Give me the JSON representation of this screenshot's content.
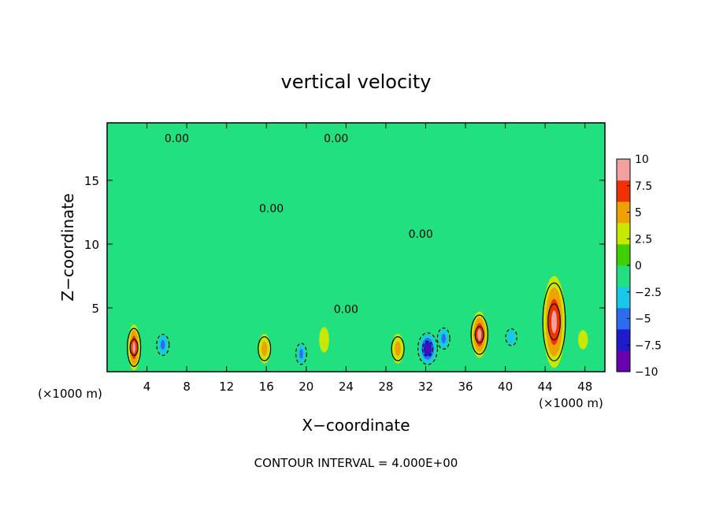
{
  "chart_data": {
    "type": "heatmap",
    "title": "vertical velocity",
    "xlabel": "X−coordinate",
    "ylabel": "Z−coordinate",
    "x_unit_left": "(×1000 m)",
    "x_unit_right": "(×1000 m)",
    "xlim": [
      0,
      50
    ],
    "ylim": [
      0,
      19.5
    ],
    "x_ticks": [
      4,
      8,
      12,
      16,
      20,
      24,
      28,
      32,
      36,
      40,
      44,
      48
    ],
    "x_tick_labels": [
      "4",
      "8",
      "12",
      "16",
      "20",
      "24",
      "28",
      "32",
      "36",
      "40",
      "44",
      "48"
    ],
    "y_ticks": [
      5,
      10,
      15
    ],
    "y_tick_labels": [
      "5",
      "10",
      "15"
    ],
    "contour_interval_text": "CONTOUR INTERVAL = 4.000E+00",
    "contour_labels": [
      {
        "text": "0.00",
        "x": 7.0,
        "z": 18.0
      },
      {
        "text": "0.00",
        "x": 23.0,
        "z": 18.0
      },
      {
        "text": "0.00",
        "x": 16.5,
        "z": 12.5
      },
      {
        "text": "0.00",
        "x": 31.5,
        "z": 10.5
      },
      {
        "text": "0.00",
        "x": 24.0,
        "z": 4.6
      }
    ],
    "colorbar": {
      "range": [
        -10,
        10
      ],
      "tick_values": [
        10,
        7.5,
        5,
        2.5,
        0,
        -2.5,
        -5,
        -7.5,
        -10
      ],
      "tick_labels": [
        "10",
        "7.5",
        "5",
        "2.5",
        "0",
        "−2.5",
        "−5",
        "−7.5",
        "−10"
      ],
      "colors": [
        "#6a00b0",
        "#1c1ccc",
        "#2c6cf0",
        "#18c8e8",
        "#20e080",
        "#40d000",
        "#c8e800",
        "#f0a000",
        "#f03000",
        "#f4a0a0"
      ]
    },
    "features": [
      {
        "x": 2.7,
        "z": 1.9,
        "w": 0.75,
        "h": 4.5,
        "value": 8.0
      },
      {
        "x": 5.6,
        "z": 2.1,
        "w": 0.9,
        "h": 3.0,
        "value": -5.5
      },
      {
        "x": 15.8,
        "z": 1.8,
        "w": 0.9,
        "h": 3.5,
        "value": 5.5
      },
      {
        "x": 19.5,
        "z": 1.4,
        "w": 0.7,
        "h": 3.0,
        "value": -5.5
      },
      {
        "x": 21.8,
        "z": 2.5,
        "w": 1.0,
        "h": 4.0,
        "value": 2.0
      },
      {
        "x": 25.5,
        "z": 2.3,
        "w": 1.5,
        "h": 3.0,
        "value": -2.0
      },
      {
        "x": 29.2,
        "z": 1.8,
        "w": 0.9,
        "h": 3.5,
        "value": 5.5
      },
      {
        "x": 32.2,
        "z": 1.8,
        "w": 1.2,
        "h": 3.4,
        "value": -9.0
      },
      {
        "x": 33.8,
        "z": 2.6,
        "w": 0.9,
        "h": 3.0,
        "value": -5.5
      },
      {
        "x": 37.4,
        "z": 2.9,
        "w": 1.0,
        "h": 4.5,
        "value": 8.5
      },
      {
        "x": 40.6,
        "z": 2.7,
        "w": 1.2,
        "h": 3.5,
        "value": -4.0
      },
      {
        "x": 44.9,
        "z": 3.9,
        "w": 1.4,
        "h": 9.0,
        "value": 9.5
      },
      {
        "x": 47.8,
        "z": 2.5,
        "w": 1.0,
        "h": 3.0,
        "value": 2.0
      },
      {
        "x": 10.0,
        "z": 5.0,
        "w": 3.0,
        "h": 4.0,
        "value": -1.8
      },
      {
        "x": 35.0,
        "z": 6.0,
        "w": 3.0,
        "h": 4.0,
        "value": -1.5
      }
    ]
  }
}
